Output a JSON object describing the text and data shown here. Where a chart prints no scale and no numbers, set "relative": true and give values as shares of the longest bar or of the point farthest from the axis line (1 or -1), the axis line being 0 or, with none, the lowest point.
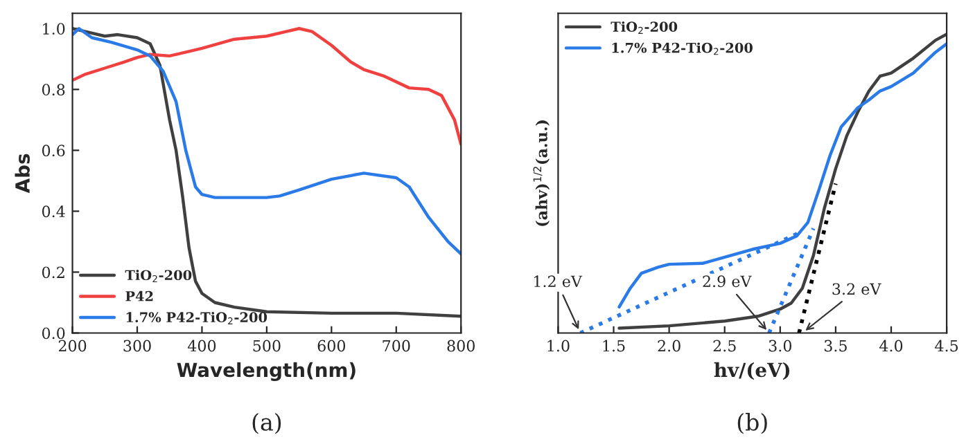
{
  "chart_data": [
    {
      "type": "line",
      "xlabel": "Wavelength(nm)",
      "ylabel": "Abs",
      "xlim": [
        200,
        800
      ],
      "ylim": [
        0,
        1.05
      ],
      "xticks": [
        200,
        300,
        400,
        500,
        600,
        700,
        800
      ],
      "yticks": [
        {
          "value": 0,
          "label": "0.0"
        },
        0.2,
        0.4,
        0.6,
        0.8,
        {
          "value": 1,
          "label": "1.0"
        }
      ],
      "grid": false,
      "legend": "bottom left",
      "marker": "none",
      "line_style": "solid",
      "annotations": [
        "(a)"
      ],
      "series": [
        {
          "name": "TiO$_{2}$-200",
          "color": "#404040",
          "x": [
            200,
            220,
            250,
            270,
            300,
            320,
            335,
            350,
            360,
            370,
            380,
            390,
            400,
            420,
            450,
            500,
            600,
            700,
            800
          ],
          "values": [
            1.0,
            0.99,
            0.975,
            0.98,
            0.97,
            0.95,
            0.88,
            0.7,
            0.6,
            0.45,
            0.28,
            0.17,
            0.13,
            0.1,
            0.085,
            0.07,
            0.065,
            0.065,
            0.055
          ]
        },
        {
          "name": "P42",
          "color": "#f04040",
          "x": [
            200,
            220,
            250,
            280,
            300,
            320,
            350,
            400,
            450,
            500,
            530,
            550,
            570,
            600,
            630,
            650,
            680,
            720,
            750,
            770,
            790,
            800
          ],
          "values": [
            0.83,
            0.85,
            0.87,
            0.89,
            0.905,
            0.915,
            0.91,
            0.935,
            0.965,
            0.975,
            0.99,
            1.0,
            0.99,
            0.945,
            0.89,
            0.865,
            0.845,
            0.805,
            0.8,
            0.78,
            0.7,
            0.62
          ]
        },
        {
          "name": "1.7% P42-TiO$_{2}$-200",
          "color": "#2a7ae8",
          "x": [
            200,
            210,
            230,
            260,
            300,
            320,
            340,
            360,
            375,
            390,
            400,
            420,
            500,
            520,
            550,
            600,
            650,
            700,
            720,
            750,
            780,
            800
          ],
          "values": [
            0.98,
            1.0,
            0.97,
            0.955,
            0.93,
            0.91,
            0.86,
            0.76,
            0.6,
            0.48,
            0.455,
            0.445,
            0.445,
            0.45,
            0.47,
            0.505,
            0.525,
            0.51,
            0.48,
            0.38,
            0.3,
            0.26
          ]
        }
      ]
    },
    {
      "type": "line",
      "xlabel": "hv/(eV)",
      "ylabel": "(ahv)$^{1/2}$(a.u.)",
      "xlim": [
        1.0,
        4.5
      ],
      "xticks": [
        {
          "value": 1.0,
          "label": "1.0"
        },
        1.5,
        {
          "value": 2.0,
          "label": "2.0"
        },
        2.5,
        {
          "value": 3.0,
          "label": "3.0"
        },
        3.5,
        {
          "value": 4.0,
          "label": "4.0"
        },
        4.5
      ],
      "relative": true,
      "tick_labels": "x",
      "grid": false,
      "legend": "top left",
      "marker": "none",
      "line_style": "solid",
      "annotations": [
        {
          "text": "1.2 eV",
          "x": 1.2,
          "y": 0
        },
        {
          "text": "2.9 eV",
          "x": 2.9,
          "y": 0
        },
        {
          "text": "3.2 eV",
          "x": 3.2,
          "y": 0
        },
        "(b)"
      ],
      "series": [
        {
          "name": "TiO$_{2}$-200",
          "color": "#404040",
          "x": [
            1.55,
            2.0,
            2.5,
            2.8,
            3.0,
            3.1,
            3.2,
            3.3,
            3.4,
            3.5,
            3.6,
            3.7,
            3.8,
            3.9,
            4.0,
            4.2,
            4.4,
            4.5
          ],
          "values": [
            0.016,
            0.024,
            0.04,
            0.056,
            0.08,
            0.1,
            0.15,
            0.26,
            0.42,
            0.55,
            0.66,
            0.74,
            0.81,
            0.86,
            0.87,
            0.92,
            0.98,
            1.0
          ]
        },
        {
          "name": "1.7% P42-TiO$_{2}$-200",
          "color": "#2a7ae8",
          "x": [
            1.55,
            1.65,
            1.75,
            1.9,
            2.0,
            2.3,
            2.5,
            2.75,
            3.0,
            3.15,
            3.25,
            3.35,
            3.45,
            3.55,
            3.7,
            3.8,
            3.9,
            4.0,
            4.2,
            4.4,
            4.5
          ],
          "values": [
            0.087,
            0.15,
            0.2,
            0.22,
            0.23,
            0.233,
            0.254,
            0.28,
            0.3,
            0.325,
            0.37,
            0.48,
            0.595,
            0.69,
            0.754,
            0.78,
            0.81,
            0.825,
            0.87,
            0.94,
            0.968
          ]
        },
        {
          "color": "#2a7ae8",
          "line_style": "dotted",
          "x": [
            1.2,
            3.2
          ],
          "values": [
            0,
            0.34
          ]
        },
        {
          "color": "#2a7ae8",
          "line_style": "dotted",
          "x": [
            2.9,
            3.3
          ],
          "values": [
            0,
            0.35
          ]
        },
        {
          "color": "#000000",
          "line_style": "dotted",
          "x": [
            3.17,
            3.5
          ],
          "values": [
            0,
            0.5
          ]
        }
      ]
    }
  ]
}
